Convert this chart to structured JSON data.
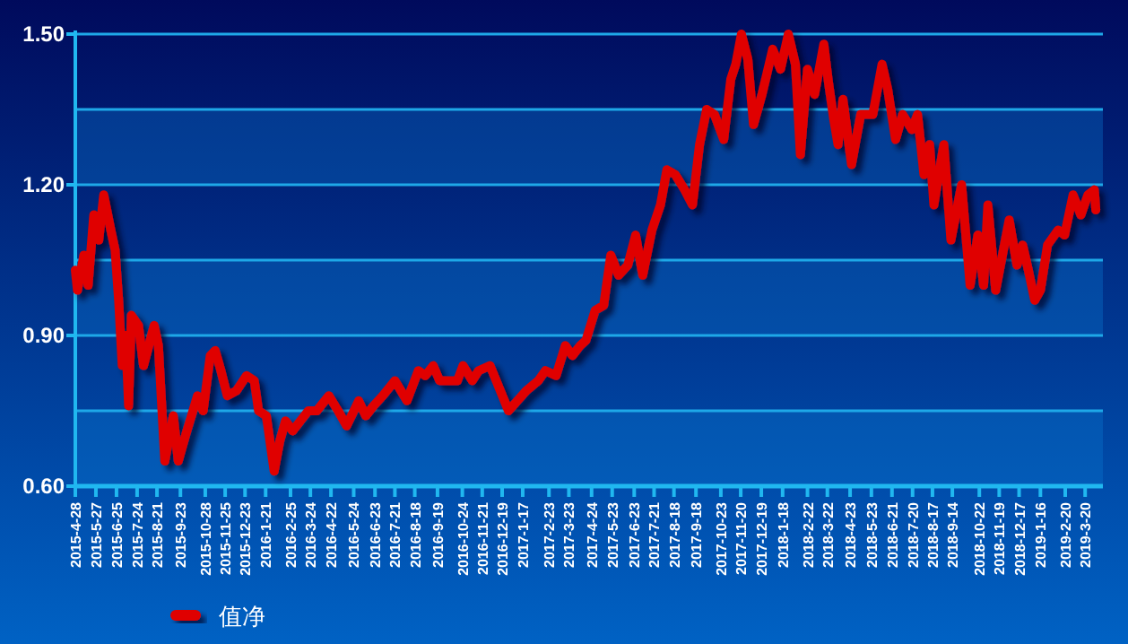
{
  "chart_data": {
    "type": "line",
    "x": [
      "2015-04-28",
      "2015-05-01",
      "2015-05-10",
      "2015-05-16",
      "2015-05-24",
      "2015-05-31",
      "2015-06-07",
      "2015-06-17",
      "2015-06-23",
      "2015-06-28",
      "2015-07-03",
      "2015-07-08",
      "2015-07-12",
      "2015-07-16",
      "2015-07-26",
      "2015-08-02",
      "2015-08-17",
      "2015-08-23",
      "2015-09-01",
      "2015-09-13",
      "2015-09-20",
      "2015-09-30",
      "2015-10-17",
      "2015-10-25",
      "2015-11-04",
      "2015-11-11",
      "2015-11-19",
      "2015-11-28",
      "2015-12-11",
      "2015-12-25",
      "2016-01-05",
      "2016-01-11",
      "2016-01-22",
      "2016-02-02",
      "2016-02-10",
      "2016-02-18",
      "2016-02-28",
      "2016-03-21",
      "2016-04-02",
      "2016-04-19",
      "2016-05-02",
      "2016-05-14",
      "2016-05-31",
      "2016-06-10",
      "2016-06-21",
      "2016-07-04",
      "2016-07-21",
      "2016-08-07",
      "2016-08-23",
      "2016-09-02",
      "2016-09-13",
      "2016-09-22",
      "2016-10-17",
      "2016-10-25",
      "2016-11-07",
      "2016-11-16",
      "2016-12-02",
      "2016-12-28",
      "2017-01-22",
      "2017-02-08",
      "2017-02-18",
      "2017-03-05",
      "2017-03-18",
      "2017-03-28",
      "2017-04-08",
      "2017-04-16",
      "2017-04-29",
      "2017-05-11",
      "2017-05-21",
      "2017-06-01",
      "2017-06-14",
      "2017-06-25",
      "2017-07-05",
      "2017-07-18",
      "2017-07-30",
      "2017-08-08",
      "2017-08-20",
      "2017-09-02",
      "2017-09-13",
      "2017-09-23",
      "2017-10-03",
      "2017-10-14",
      "2017-10-27",
      "2017-11-06",
      "2017-11-13",
      "2017-11-21",
      "2017-11-30",
      "2017-12-08",
      "2017-12-20",
      "2018-01-04",
      "2018-01-15",
      "2018-01-26",
      "2018-02-05",
      "2018-02-12",
      "2018-02-22",
      "2018-03-04",
      "2018-03-17",
      "2018-03-23",
      "2018-03-31",
      "2018-04-06",
      "2018-04-13",
      "2018-04-25",
      "2018-05-08",
      "2018-05-25",
      "2018-06-07",
      "2018-06-15",
      "2018-06-26",
      "2018-07-06",
      "2018-07-19",
      "2018-07-27",
      "2018-08-05",
      "2018-08-13",
      "2018-08-19",
      "2018-09-02",
      "2018-09-12",
      "2018-09-27",
      "2018-10-09",
      "2018-10-20",
      "2018-10-28",
      "2018-11-03",
      "2018-11-14",
      "2018-12-03",
      "2018-12-14",
      "2018-12-22",
      "2018-12-30",
      "2019-01-08",
      "2019-01-16",
      "2019-01-26",
      "2019-02-10",
      "2019-02-19",
      "2019-03-03",
      "2019-03-14",
      "2019-03-24",
      "2019-04-02",
      "2019-04-04"
    ],
    "series": [
      {
        "name": "值净",
        "color": "#e00000",
        "values": [
          1.03,
          0.99,
          1.06,
          1.0,
          1.14,
          1.09,
          1.18,
          1.11,
          1.07,
          0.97,
          0.84,
          0.9,
          0.76,
          0.94,
          0.92,
          0.84,
          0.92,
          0.88,
          0.65,
          0.74,
          0.65,
          0.7,
          0.78,
          0.75,
          0.86,
          0.87,
          0.83,
          0.78,
          0.79,
          0.82,
          0.81,
          0.75,
          0.74,
          0.63,
          0.69,
          0.73,
          0.71,
          0.75,
          0.75,
          0.78,
          0.75,
          0.72,
          0.77,
          0.74,
          0.76,
          0.78,
          0.81,
          0.77,
          0.83,
          0.82,
          0.84,
          0.81,
          0.81,
          0.84,
          0.81,
          0.83,
          0.84,
          0.75,
          0.79,
          0.81,
          0.83,
          0.82,
          0.88,
          0.86,
          0.88,
          0.89,
          0.95,
          0.96,
          1.06,
          1.02,
          1.04,
          1.1,
          1.02,
          1.11,
          1.16,
          1.23,
          1.22,
          1.19,
          1.16,
          1.28,
          1.35,
          1.34,
          1.29,
          1.41,
          1.44,
          1.5,
          1.45,
          1.32,
          1.38,
          1.47,
          1.43,
          1.5,
          1.44,
          1.26,
          1.43,
          1.38,
          1.48,
          1.41,
          1.33,
          1.28,
          1.37,
          1.24,
          1.34,
          1.34,
          1.44,
          1.39,
          1.29,
          1.34,
          1.31,
          1.34,
          1.22,
          1.28,
          1.16,
          1.28,
          1.09,
          1.2,
          1.0,
          1.1,
          1.0,
          1.16,
          0.99,
          1.13,
          1.04,
          1.08,
          1.03,
          0.97,
          0.99,
          1.08,
          1.11,
          1.1,
          1.18,
          1.14,
          1.18,
          1.19,
          1.15
        ]
      }
    ],
    "xlim": [
      "2015-04-28",
      "2019-04-14"
    ],
    "xticks": [
      {
        "value": "2015-04-28",
        "label": "2015-4-28"
      },
      {
        "value": "2015-05-27",
        "label": "2015-5-27"
      },
      {
        "value": "2015-06-25",
        "label": "2015-6-25"
      },
      {
        "value": "2015-07-24",
        "label": "2015-7-24"
      },
      {
        "value": "2015-08-21",
        "label": "2015-8-21"
      },
      {
        "value": "2015-09-23",
        "label": "2015-9-23"
      },
      {
        "value": "2015-10-28",
        "label": "2015-10-28"
      },
      {
        "value": "2015-11-25",
        "label": "2015-11-25"
      },
      {
        "value": "2015-12-23",
        "label": "2015-12-23"
      },
      {
        "value": "2016-01-21",
        "label": "2016-1-21"
      },
      {
        "value": "2016-02-25",
        "label": "2016-2-25"
      },
      {
        "value": "2016-03-24",
        "label": "2016-3-24"
      },
      {
        "value": "2016-04-22",
        "label": "2016-4-22"
      },
      {
        "value": "2016-05-24",
        "label": "2016-5-24"
      },
      {
        "value": "2016-06-23",
        "label": "2016-6-23"
      },
      {
        "value": "2016-07-21",
        "label": "2016-7-21"
      },
      {
        "value": "2016-08-18",
        "label": "2016-8-18"
      },
      {
        "value": "2016-09-19",
        "label": "2016-9-19"
      },
      {
        "value": "2016-10-24",
        "label": "2016-10-24"
      },
      {
        "value": "2016-11-21",
        "label": "2016-11-21"
      },
      {
        "value": "2016-12-19",
        "label": "2016-12-19"
      },
      {
        "value": "2017-01-17",
        "label": "2017-1-17"
      },
      {
        "value": "2017-02-23",
        "label": "2017-2-23"
      },
      {
        "value": "2017-03-23",
        "label": "2017-3-23"
      },
      {
        "value": "2017-04-24",
        "label": "2017-4-24"
      },
      {
        "value": "2017-05-23",
        "label": "2017-5-23"
      },
      {
        "value": "2017-06-23",
        "label": "2017-6-23"
      },
      {
        "value": "2017-07-21",
        "label": "2017-7-21"
      },
      {
        "value": "2017-08-18",
        "label": "2017-8-18"
      },
      {
        "value": "2017-09-18",
        "label": "2017-9-18"
      },
      {
        "value": "2017-10-23",
        "label": "2017-10-23"
      },
      {
        "value": "2017-11-20",
        "label": "2017-11-20"
      },
      {
        "value": "2017-12-19",
        "label": "2017-12-19"
      },
      {
        "value": "2018-01-18",
        "label": "2018-1-18"
      },
      {
        "value": "2018-02-22",
        "label": "2018-2-22"
      },
      {
        "value": "2018-03-22",
        "label": "2018-3-22"
      },
      {
        "value": "2018-04-23",
        "label": "2018-4-23"
      },
      {
        "value": "2018-05-23",
        "label": "2018-5-23"
      },
      {
        "value": "2018-06-21",
        "label": "2018-6-21"
      },
      {
        "value": "2018-07-20",
        "label": "2018-7-20"
      },
      {
        "value": "2018-08-17",
        "label": "2018-8-17"
      },
      {
        "value": "2018-09-14",
        "label": "2018-9-14"
      },
      {
        "value": "2018-10-22",
        "label": "2018-10-22"
      },
      {
        "value": "2018-11-19",
        "label": "2018-11-19"
      },
      {
        "value": "2018-12-17",
        "label": "2018-12-17"
      },
      {
        "value": "2019-01-16",
        "label": "2019-1-16"
      },
      {
        "value": "2019-02-20",
        "label": "2019-2-20"
      },
      {
        "value": "2019-03-20",
        "label": "2019-3-20"
      }
    ],
    "ylim": [
      0.6,
      1.5
    ],
    "yticks": [
      {
        "value": 0.6,
        "label": "0.60"
      },
      {
        "value": 0.75,
        "label": null
      },
      {
        "value": 0.9,
        "label": "0.90"
      },
      {
        "value": 1.05,
        "label": null
      },
      {
        "value": 1.2,
        "label": "1.20"
      },
      {
        "value": 1.35,
        "label": null
      },
      {
        "value": 1.5,
        "label": "1.50"
      }
    ],
    "bands": [
      {
        "axis": "y",
        "from": 0.6,
        "to": 0.75,
        "color": "#0a78d0"
      },
      {
        "axis": "y",
        "from": 0.9,
        "to": 1.05,
        "color": "#0a78d0"
      },
      {
        "axis": "y",
        "from": 1.2,
        "to": 1.35,
        "color": "#0a78d0"
      }
    ],
    "grid": "y",
    "legend": "bottom left",
    "marker": "none",
    "line_style": "solid"
  }
}
